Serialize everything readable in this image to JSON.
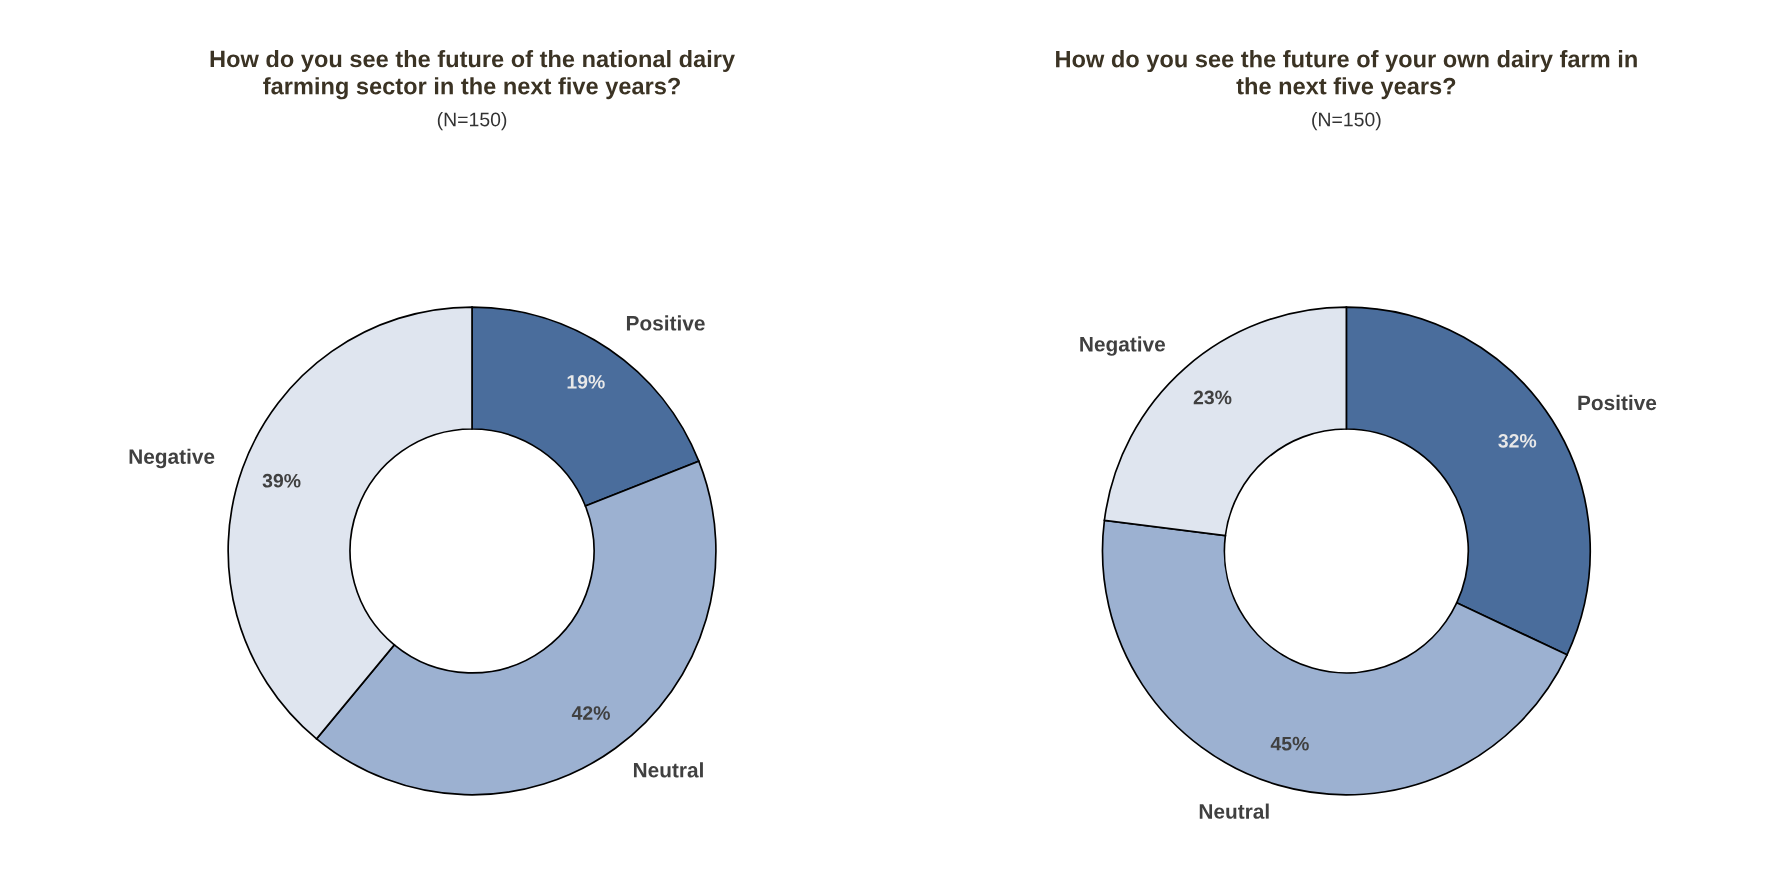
{
  "chart_data": [
    {
      "type": "donut",
      "title": "How do you see the future of the national dairy\nfarming sector in the next five years?",
      "subtitle": "(N=150)",
      "categories": [
        "Positive",
        "Neutral",
        "Negative"
      ],
      "values": [
        19,
        42,
        39
      ],
      "value_labels": [
        "19%",
        "42%",
        "39%"
      ],
      "colors": [
        "#4a6d9c",
        "#9cb1d1",
        "#dfe5ef"
      ]
    },
    {
      "type": "donut",
      "title": "How do you see the future of your own dairy farm in\nthe next five years?",
      "subtitle": "(N=150)",
      "categories": [
        "Positive",
        "Neutral",
        "Negative"
      ],
      "values": [
        32,
        45,
        23
      ],
      "value_labels": [
        "32%",
        "45%",
        "23%"
      ],
      "colors": [
        "#4a6d9c",
        "#9cb1d1",
        "#dfe5ef"
      ]
    }
  ]
}
